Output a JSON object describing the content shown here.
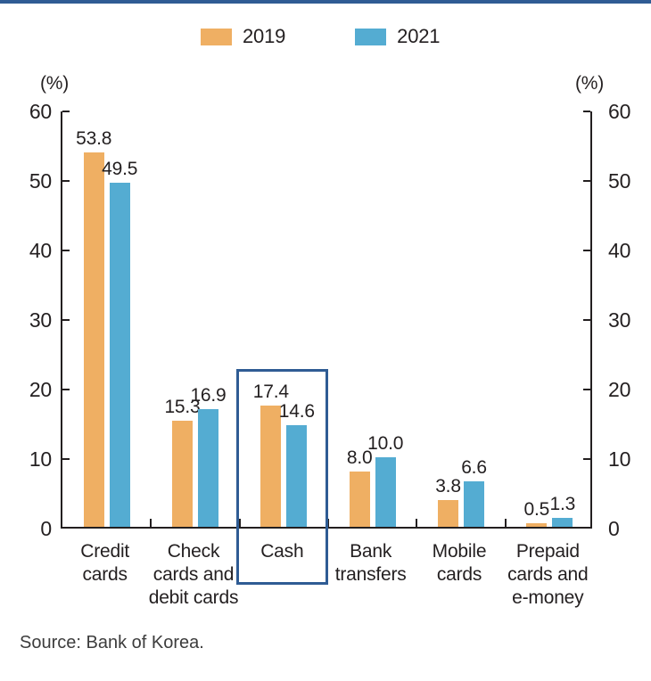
{
  "page": {
    "top_bar_color": "#2f5c94"
  },
  "legend": {
    "items": [
      {
        "label": "2019",
        "color": "#efaf63"
      },
      {
        "label": "2021",
        "color": "#54acd2"
      }
    ]
  },
  "axis": {
    "left_unit": "(%)",
    "right_unit": "(%)"
  },
  "chart_data": {
    "type": "bar",
    "title": "",
    "categories": [
      "Credit cards",
      "Check cards and debit cards",
      "Cash",
      "Bank transfers",
      "Mobile cards",
      "Prepaid cards and e-money"
    ],
    "category_lines": [
      [
        "Credit",
        "cards"
      ],
      [
        "Check",
        "cards and",
        "debit cards"
      ],
      [
        "Cash"
      ],
      [
        "Bank",
        "transfers"
      ],
      [
        "Mobile",
        "cards"
      ],
      [
        "Prepaid",
        "cards and",
        "e-money"
      ]
    ],
    "series": [
      {
        "name": "2019",
        "color": "#efaf63",
        "values": [
          53.8,
          15.3,
          17.4,
          8.0,
          3.8,
          0.5
        ]
      },
      {
        "name": "2021",
        "color": "#54acd2",
        "values": [
          49.5,
          16.9,
          14.6,
          10.0,
          6.6,
          1.3
        ]
      }
    ],
    "xlabel": "",
    "ylabel": "(%)",
    "ylim": [
      0,
      60
    ],
    "y_ticks": [
      0,
      10,
      20,
      30,
      40,
      50,
      60
    ],
    "grid": false,
    "legend_position": "top",
    "axis_color": "#231f20",
    "highlight": {
      "category": "Cash",
      "box_color": "#2f5c94"
    }
  },
  "source": {
    "text": "Source: Bank of Korea."
  }
}
